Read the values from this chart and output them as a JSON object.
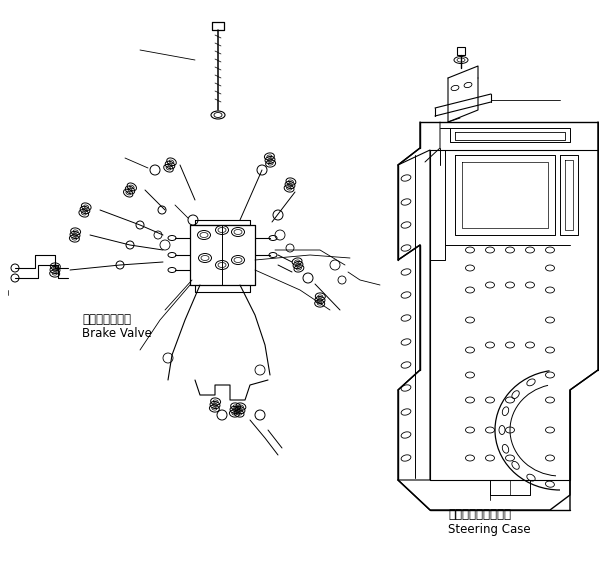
{
  "background_color": "#ffffff",
  "line_color": "#000000",
  "label_brake_jp": "ブレーキバルブ",
  "label_brake_en": "Brake Valve",
  "label_steering_jp": "ステアリングケース",
  "label_steering_en": "Steering Case",
  "figsize": [
    5.99,
    5.79
  ],
  "dpi": 100
}
